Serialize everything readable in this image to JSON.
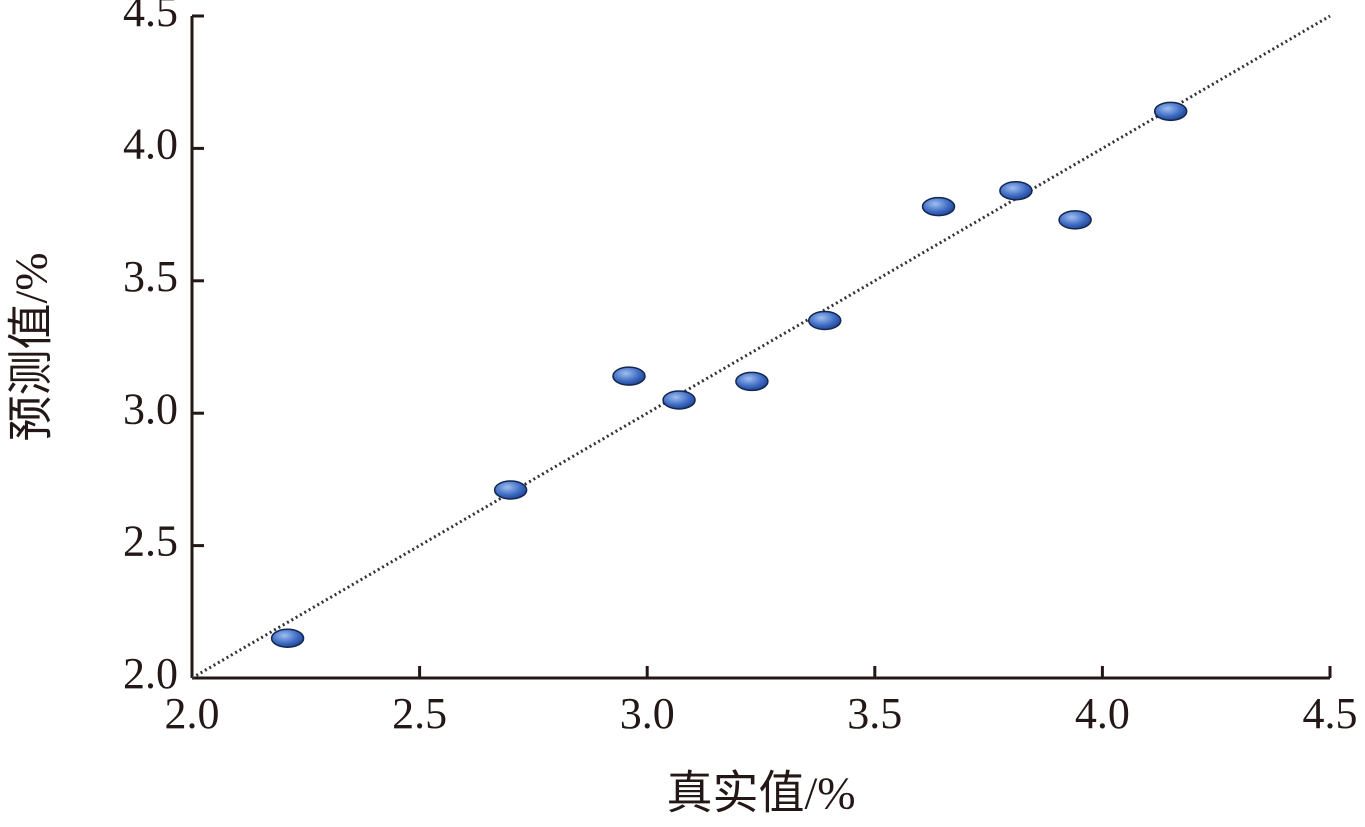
{
  "chart_data": {
    "type": "scatter",
    "x_label": "真实值/%",
    "y_label": "预测值/%",
    "series": [
      {
        "color": "#3f6cc4",
        "x": [
          2.21,
          2.7,
          2.96,
          3.07,
          3.23,
          3.39,
          3.64,
          3.81,
          3.94,
          4.15
        ],
        "values": [
          2.15,
          2.71,
          3.14,
          3.05,
          3.12,
          3.35,
          3.78,
          3.84,
          3.73,
          4.14
        ]
      }
    ],
    "xlim": [
      2,
      4.5
    ],
    "ylim": [
      2,
      4.5
    ],
    "xticks": [
      {
        "value": 2,
        "label": "2.0"
      },
      2.5,
      {
        "value": 3,
        "label": "3.0"
      },
      3.5,
      {
        "value": 4,
        "label": "4.0"
      },
      4.5
    ],
    "yticks": [
      {
        "value": 2,
        "label": "2.0"
      },
      2.5,
      {
        "value": 3,
        "label": "3.0"
      },
      3.5,
      {
        "value": 4,
        "label": "4.0"
      },
      4.5
    ],
    "diagonal_reference": true,
    "grid": false
  }
}
